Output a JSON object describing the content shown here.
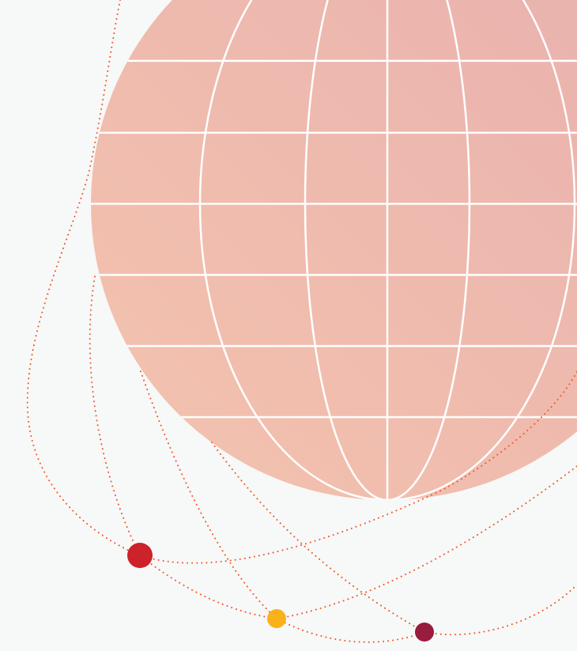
{
  "colors": {
    "background": "#f7f8f8",
    "globe_gradient_light": "#f4c3ae",
    "globe_gradient_dark": "#e8b0ae",
    "grid_lines": "#ffffff",
    "orbit_dots": "#f05a28",
    "node_red": "#cc2229",
    "node_yellow": "#fbb11b",
    "node_maroon": "#981c3c"
  },
  "icons": {
    "globe": "globe-illustration",
    "orbit": "dotted-orbit-path",
    "node": "circle-node"
  }
}
